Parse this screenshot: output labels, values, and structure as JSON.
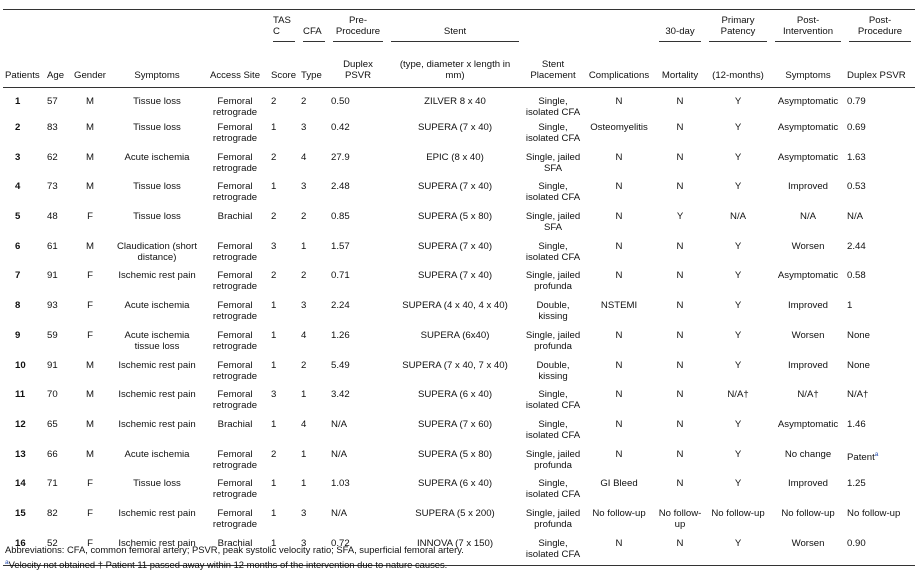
{
  "header_groups": {
    "tasc": "TASC",
    "cfa": "CFA",
    "pre": "Pre-Procedure",
    "stent": "Stent",
    "mortality": "30-day",
    "patency": "Primary Patency",
    "post_int": "Post-Intervention",
    "post_proc": "Post-Procedure"
  },
  "columns": [
    "Patients",
    "Age",
    "Gender",
    "Symptoms",
    "Access Site",
    "Score",
    "Type",
    "Duplex PSVR",
    "(type, diameter x length in mm)",
    "Stent Placement",
    "Complications",
    "Mortality",
    "(12-months)",
    "Symptoms",
    "Duplex PSVR"
  ],
  "rows": [
    [
      "1",
      "57",
      "M",
      "Tissue loss",
      "Femoral retrograde",
      "2",
      "2",
      "0.50",
      "ZILVER 8 x 40",
      "Single, isolated CFA",
      "N",
      "N",
      "Y",
      "Asymptomatic",
      "0.79"
    ],
    [
      "2",
      "83",
      "M",
      "Tissue loss",
      "Femoral retrograde",
      "1",
      "3",
      "0.42",
      "SUPERA (7 x 40)",
      "Single, isolated CFA",
      "Osteomyelitis",
      "N",
      "Y",
      "Asymptomatic",
      "0.69"
    ],
    [
      "3",
      "62",
      "M",
      "Acute ischemia",
      "Femoral retrograde",
      "2",
      "4",
      "27.9",
      "EPIC (8 x 40)",
      "Single, jailed SFA",
      "N",
      "N",
      "Y",
      "Asymptomatic",
      "1.63"
    ],
    [
      "4",
      "73",
      "M",
      "Tissue loss",
      "Femoral retrograde",
      "1",
      "3",
      "2.48",
      "SUPERA (7 x 40)",
      "Single, isolated CFA",
      "N",
      "N",
      "Y",
      "Improved",
      "0.53"
    ],
    [
      "5",
      "48",
      "F",
      "Tissue loss",
      "Brachial",
      "2",
      "2",
      "0.85",
      "SUPERA (5 x 80)",
      "Single, jailed SFA",
      "N",
      "Y",
      "N/A",
      "N/A",
      "N/A"
    ],
    [
      "6",
      "61",
      "M",
      "Claudication (short distance)",
      "Femoral retrograde",
      "3",
      "1",
      "1.57",
      "SUPERA (7 x 40)",
      "Single, isolated CFA",
      "N",
      "N",
      "Y",
      "Worsen",
      "2.44"
    ],
    [
      "7",
      "91",
      "F",
      "Ischemic rest pain",
      "Femoral retrograde",
      "2",
      "2",
      "0.71",
      "SUPERA (7 x 40)",
      "Single, jailed profunda",
      "N",
      "N",
      "Y",
      "Asymptomatic",
      "0.58"
    ],
    [
      "8",
      "93",
      "F",
      "Acute ischemia",
      "Femoral retrograde",
      "1",
      "3",
      "2.24",
      "SUPERA (4 x 40, 4 x 40)",
      "Double, kissing",
      "NSTEMI",
      "N",
      "Y",
      "Improved",
      "1"
    ],
    [
      "9",
      "59",
      "F",
      "Acute ischemia tissue loss",
      "Femoral retrograde",
      "1",
      "4",
      "1.26",
      "SUPERA (6x40)",
      "Single, jailed profunda",
      "N",
      "N",
      "Y",
      "Worsen",
      "None"
    ],
    [
      "10",
      "91",
      "M",
      "Ischemic rest pain",
      "Femoral retrograde",
      "1",
      "2",
      "5.49",
      "SUPERA (7 x 40, 7 x 40)",
      "Double, kissing",
      "N",
      "N",
      "Y",
      "Improved",
      "None"
    ],
    [
      "11",
      "70",
      "M",
      "Ischemic rest pain",
      "Femoral retrograde",
      "3",
      "1",
      "3.42",
      "SUPERA (6 x 40)",
      "Single, isolated CFA",
      "N",
      "N",
      "N/A†",
      "N/A†",
      "N/A†"
    ],
    [
      "12",
      "65",
      "M",
      "Ischemic rest pain",
      "Brachial",
      "1",
      "4",
      "N/A",
      "SUPERA (7 x 60)",
      "Single, isolated CFA",
      "N",
      "N",
      "Y",
      "Asymptomatic",
      "1.46"
    ],
    [
      "13",
      "66",
      "M",
      "Acute ischemia",
      "Femoral retrograde",
      "2",
      "1",
      "N/A",
      "SUPERA (5 x 80)",
      "Single, jailed profunda",
      "N",
      "N",
      "Y",
      "No change",
      "Patent"
    ],
    [
      "14",
      "71",
      "F",
      "Tissue loss",
      "Femoral retrograde",
      "1",
      "1",
      "1.03",
      "SUPERA (6 x 40)",
      "Single, isolated CFA",
      "GI Bleed",
      "N",
      "Y",
      "Improved",
      "1.25"
    ],
    [
      "15",
      "82",
      "F",
      "Ischemic rest pain",
      "Femoral retrograde",
      "1",
      "3",
      "N/A",
      "SUPERA (5 x 200)",
      "Single, jailed profunda",
      "No follow-up",
      "No follow-up",
      "No follow-up",
      "No follow-up",
      "No follow-up"
    ],
    [
      "16",
      "52",
      "F",
      "Ischemic rest pain",
      "Brachial",
      "1",
      "3",
      "0.72",
      "INNOVA (7 x 150)",
      "Single, isolated CFA",
      "N",
      "N",
      "Y",
      "Worsen",
      "0.90"
    ]
  ],
  "row13_superscript": "a",
  "footnotes": [
    "Abbreviations: CFA, common femoral artery; PSVR, peak systolic velocity ratio; SFA, superficial femoral artery.",
    "Velocity not obtained † Patient 11 passed away within 12 months of the intervention due to nature causes."
  ],
  "footnote_marker": "a",
  "accent_color": "#2a4fb0"
}
